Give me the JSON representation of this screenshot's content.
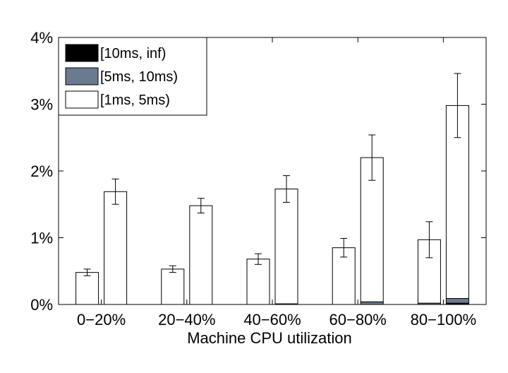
{
  "chart_data": {
    "type": "bar",
    "subtype": "grouped-stacked",
    "title": "",
    "xlabel": "Machine CPU utilization",
    "ylabel": "",
    "ylim": [
      0,
      4
    ],
    "y_unit": "%",
    "y_ticks": [
      "0%",
      "1%",
      "2%",
      "3%",
      "4%"
    ],
    "categories": [
      "0−20%",
      "20−40%",
      "40−60%",
      "60−80%",
      "80−100%"
    ],
    "grid": false,
    "legend_placement": "top-left",
    "series": [
      {
        "name": "[10ms, inf)",
        "color": "#000000"
      },
      {
        "name": "[5ms, 10ms)",
        "color": "#6b7b8f"
      },
      {
        "name": "[1ms, 5ms)",
        "color": "#ffffff"
      }
    ],
    "groups": [
      {
        "bars": [
          {
            "values": [
              0.0,
              0.0,
              0.48
            ],
            "error": 0.05
          },
          {
            "values": [
              0.0,
              0.0,
              1.69
            ],
            "error": 0.19
          }
        ]
      },
      {
        "bars": [
          {
            "values": [
              0.0,
              0.0,
              0.53
            ],
            "error": 0.05
          },
          {
            "values": [
              0.0,
              0.0,
              1.48
            ],
            "error": 0.11
          }
        ]
      },
      {
        "bars": [
          {
            "values": [
              0.0,
              0.0,
              0.68
            ],
            "error": 0.08
          },
          {
            "values": [
              0.0,
              0.01,
              1.72
            ],
            "error": 0.2
          }
        ]
      },
      {
        "bars": [
          {
            "values": [
              0.0,
              0.0,
              0.85
            ],
            "error": 0.14
          },
          {
            "values": [
              0.0,
              0.04,
              2.16
            ],
            "error": 0.34
          }
        ]
      },
      {
        "bars": [
          {
            "values": [
              0.0,
              0.02,
              0.95
            ],
            "error": 0.27
          },
          {
            "values": [
              0.02,
              0.07,
              2.89
            ],
            "error": 0.48
          }
        ]
      }
    ]
  }
}
